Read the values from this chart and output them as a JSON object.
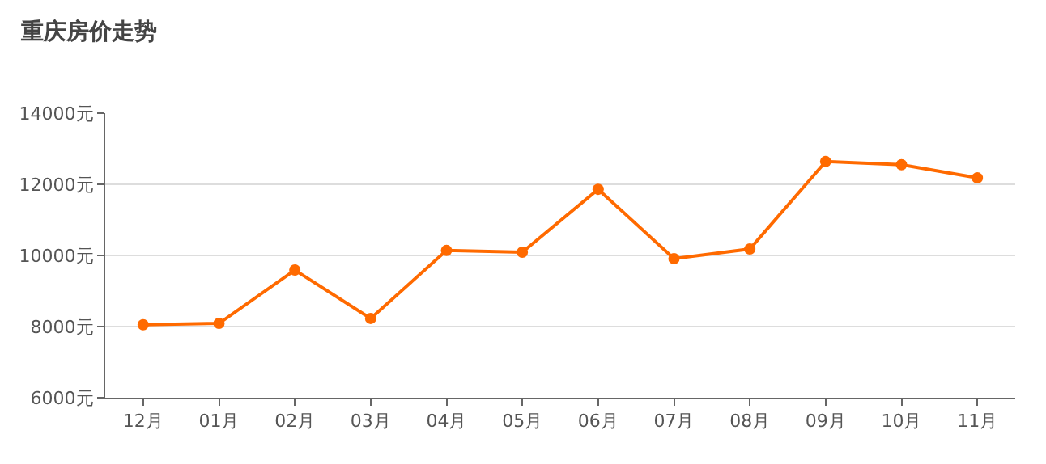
{
  "chart_data": {
    "type": "line",
    "title": "重庆房价走势",
    "categories": [
      "12月",
      "01月",
      "02月",
      "03月",
      "04月",
      "05月",
      "06月",
      "07月",
      "08月",
      "09月",
      "10月",
      "11月"
    ],
    "series": [
      {
        "color": "#ff6a00",
        "values": [
          8050,
          8090,
          9590,
          8230,
          10140,
          10090,
          11860,
          9910,
          10180,
          12640,
          12550,
          12180
        ]
      }
    ],
    "ylim": [
      6000,
      14000
    ],
    "yticks": [
      {
        "value": 6000,
        "label": "6000元"
      },
      {
        "value": 8000,
        "label": "8000元"
      },
      {
        "value": 10000,
        "label": "10000元"
      },
      {
        "value": 12000,
        "label": "12000元"
      },
      {
        "value": 14000,
        "label": "14000元"
      }
    ],
    "grid": "y",
    "marker": "circle",
    "line_style": "solid"
  }
}
